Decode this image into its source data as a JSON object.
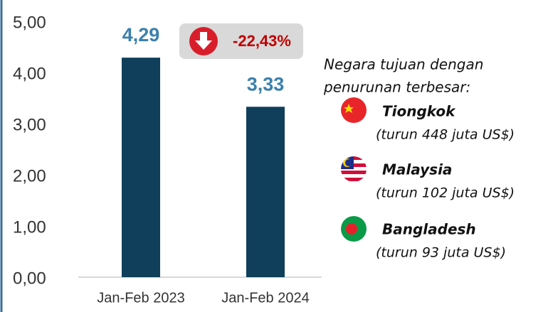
{
  "chart_data": {
    "type": "bar",
    "categories": [
      "Jan-Feb 2023",
      "Jan-Feb 2024"
    ],
    "values": [
      4.29,
      3.33
    ],
    "value_labels": [
      "4,29",
      "3,33"
    ],
    "color": "#0f3f5a",
    "ylim": [
      0,
      5
    ],
    "yticks": [
      {
        "value": 0,
        "label": "0,00"
      },
      {
        "value": 1,
        "label": "1,00"
      },
      {
        "value": 2,
        "label": "2,00"
      },
      {
        "value": 3,
        "label": "3,00"
      },
      {
        "value": 4,
        "label": "4,00"
      },
      {
        "value": 5,
        "label": "5,00"
      }
    ],
    "grid": false,
    "annotation": "-22,43%",
    "note": [
      "Negara tujuan dengan",
      "penurunan terbesar:"
    ],
    "countries": [
      {
        "name": "Tiongkok",
        "detail": "(turun 448 juta US$)"
      },
      {
        "name": "Malaysia",
        "detail": "(turun 102 juta US$)"
      },
      {
        "name": "Bangladesh",
        "detail": "(turun 93 juta US$)"
      }
    ]
  }
}
